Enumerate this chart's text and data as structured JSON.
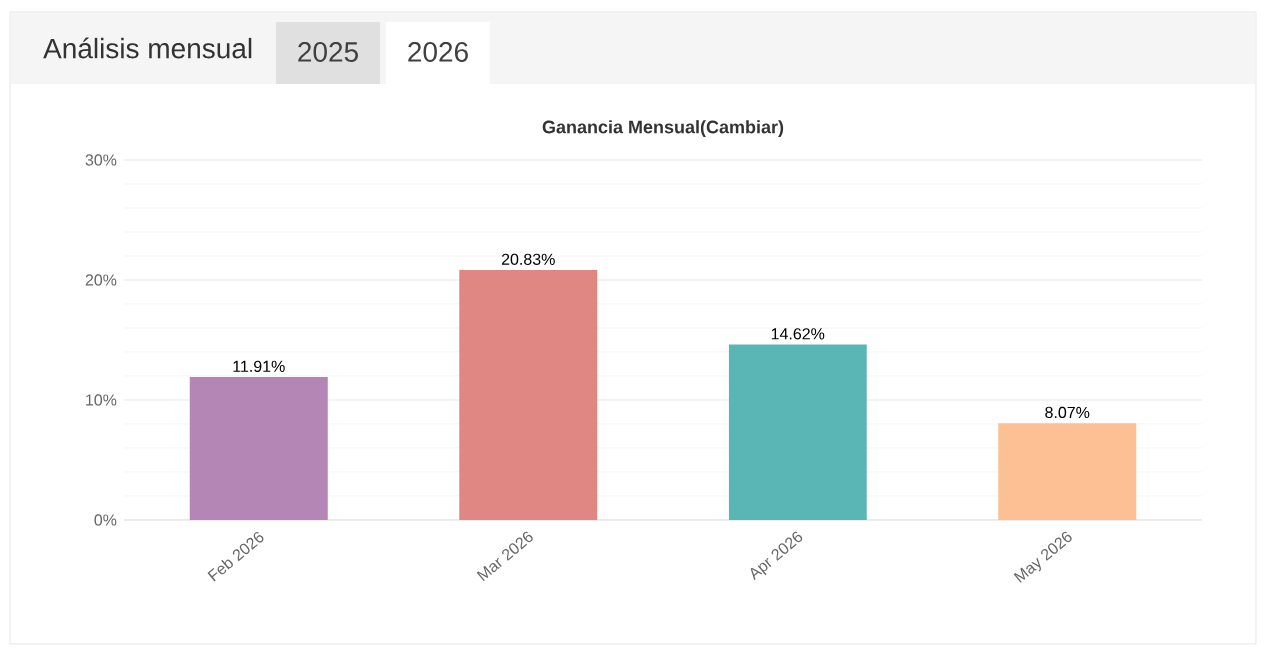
{
  "chart_data": {
    "type": "bar",
    "title": "Ganancia Mensual(Cambiar)",
    "annotations": [
      "Análisis mensual",
      "2025",
      "2026"
    ],
    "categories": [
      "Feb 2026",
      "Mar 2026",
      "Apr 2026",
      "May 2026"
    ],
    "values": [
      11.91,
      20.83,
      14.62,
      8.07
    ],
    "value_labels": [
      "11.91%",
      "20.83%",
      "14.62%",
      "8.07%"
    ],
    "colors": [
      "#b386b5",
      "#e08784",
      "#5ab5b5",
      "#fdbf94"
    ],
    "ylim": [
      0,
      30
    ],
    "yticks": [
      {
        "value": 0,
        "label": "0%"
      },
      {
        "value": 10,
        "label": "10%"
      },
      {
        "value": 20,
        "label": "20%"
      },
      {
        "value": 30,
        "label": "30%"
      }
    ],
    "grid": true
  }
}
